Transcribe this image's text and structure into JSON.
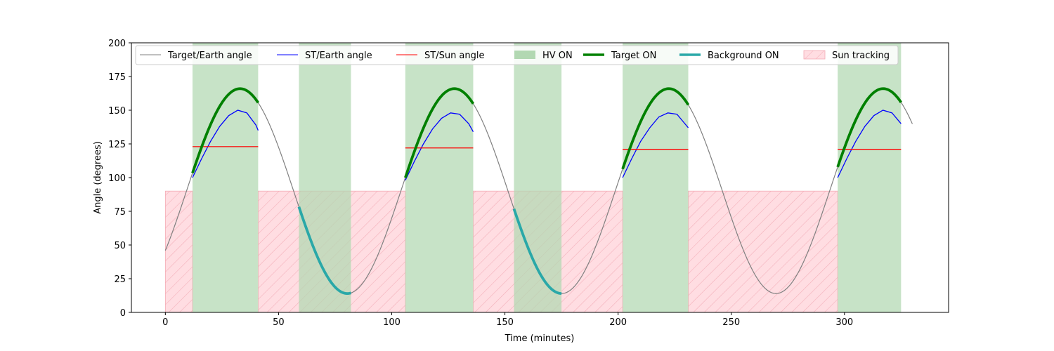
{
  "chart_data": {
    "type": "line",
    "title": "",
    "xlabel": "Time (minutes)",
    "ylabel": "Angle (degrees)",
    "xlim": [
      -15,
      346
    ],
    "ylim": [
      0,
      200
    ],
    "xticks": [
      0,
      50,
      100,
      150,
      200,
      250,
      300
    ],
    "yticks": [
      0,
      25,
      50,
      75,
      100,
      125,
      150,
      175,
      200
    ],
    "grid": false,
    "legend_position": "top",
    "colors": {
      "target_earth": "#808080",
      "st_earth": "#0000ff",
      "st_sun": "#ff0000",
      "hv_on": "#b2d8b2",
      "target_on": "#008000",
      "background_on": "#2aa8a8",
      "sun_tracking_fill": "#ffdde2",
      "sun_tracking_hatch": "#f4aab4"
    },
    "target_earth_wave": {
      "mean": 90,
      "amplitude": 76,
      "period_minutes": 94.7,
      "first_peak_minute": 33,
      "x_start": 0,
      "x_end": 330
    },
    "legend": [
      {
        "label": "Target/Earth angle",
        "kind": "line",
        "color": "#808080",
        "width": 1
      },
      {
        "label": "ST/Earth angle",
        "kind": "line",
        "color": "#0000ff",
        "width": 1
      },
      {
        "label": "ST/Sun angle",
        "kind": "line",
        "color": "#ff0000",
        "width": 1
      },
      {
        "label": "HV ON",
        "kind": "patch",
        "color": "#b2d8b2"
      },
      {
        "label": "Target ON",
        "kind": "line",
        "color": "#008000",
        "width": 3.5
      },
      {
        "label": "Background ON",
        "kind": "line",
        "color": "#2aa8a8",
        "width": 3.5
      },
      {
        "label": "Sun tracking",
        "kind": "hatch",
        "color": "#ffdde2"
      }
    ],
    "hv_on_intervals": [
      [
        12,
        41
      ],
      [
        59,
        82
      ],
      [
        106,
        136
      ],
      [
        154,
        175
      ],
      [
        202,
        231
      ],
      [
        297,
        325
      ]
    ],
    "target_on_intervals": [
      [
        12,
        41
      ],
      [
        106,
        136
      ],
      [
        202,
        231
      ],
      [
        297,
        325
      ]
    ],
    "background_on_intervals": [
      [
        59,
        82
      ],
      [
        154,
        175
      ]
    ],
    "sun_tracking": {
      "y_top": 90,
      "intervals": [
        [
          0,
          12
        ],
        [
          41,
          106
        ],
        [
          136,
          202
        ],
        [
          231,
          297
        ]
      ]
    },
    "st_earth_segments": [
      {
        "x": [
          12,
          16,
          20,
          24,
          28,
          32,
          36,
          40,
          41
        ],
        "y": [
          100,
          114,
          127,
          138,
          146,
          150,
          148,
          139,
          135
        ]
      },
      {
        "x": [
          106,
          110,
          114,
          118,
          122,
          126,
          130,
          134,
          136
        ],
        "y": [
          98,
          112,
          125,
          136,
          144,
          148,
          147,
          140,
          134
        ]
      },
      {
        "x": [
          202,
          206,
          210,
          214,
          218,
          222,
          226,
          230,
          231
        ],
        "y": [
          100,
          114,
          127,
          137,
          145,
          148,
          147,
          139,
          137
        ]
      },
      {
        "x": [
          297,
          301,
          305,
          309,
          313,
          317,
          321,
          325
        ],
        "y": [
          100,
          114,
          127,
          138,
          146,
          150,
          148,
          140
        ]
      }
    ],
    "st_sun_segments": [
      {
        "x": [
          12,
          41
        ],
        "y": [
          123,
          123
        ]
      },
      {
        "x": [
          106,
          136
        ],
        "y": [
          122,
          122
        ]
      },
      {
        "x": [
          202,
          231
        ],
        "y": [
          121,
          121
        ]
      },
      {
        "x": [
          297,
          325
        ],
        "y": [
          121,
          121
        ]
      }
    ]
  }
}
